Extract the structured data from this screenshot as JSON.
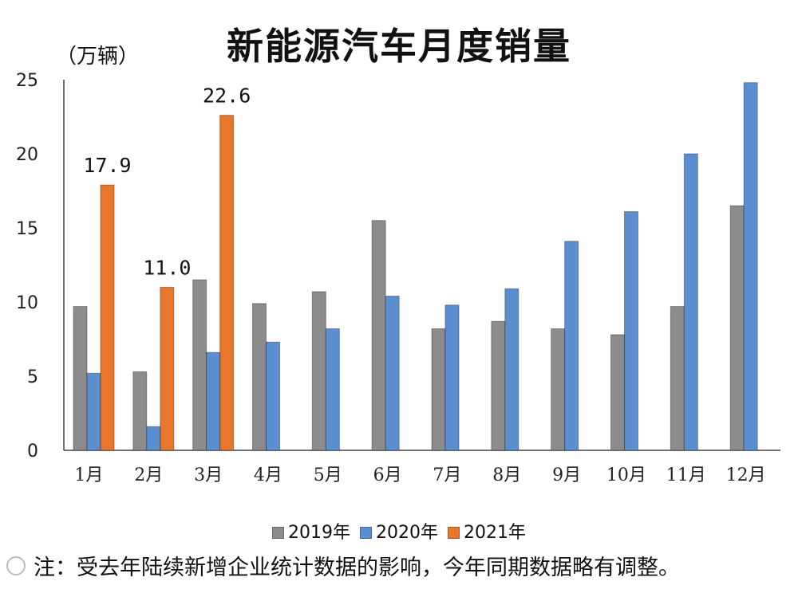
{
  "chart_data": {
    "type": "bar",
    "title": "新能源汽车月度销量",
    "ylabel": "（万辆）",
    "xlabel": "",
    "categories": [
      "1月",
      "2月",
      "3月",
      "4月",
      "5月",
      "6月",
      "7月",
      "8月",
      "9月",
      "10月",
      "11月",
      "12月"
    ],
    "series": [
      {
        "name": "2019年",
        "color": "#8c8c8c",
        "values": [
          9.7,
          5.3,
          11.5,
          9.9,
          10.7,
          15.5,
          8.2,
          8.7,
          8.2,
          7.8,
          9.7,
          16.5
        ]
      },
      {
        "name": "2020年",
        "color": "#5b8fcf",
        "values": [
          5.2,
          1.6,
          6.6,
          7.3,
          8.2,
          10.4,
          9.8,
          10.9,
          14.1,
          16.1,
          20.0,
          24.8
        ]
      },
      {
        "name": "2021年",
        "color": "#e8762b",
        "values": [
          17.9,
          11.0,
          22.6,
          null,
          null,
          null,
          null,
          null,
          null,
          null,
          null,
          null
        ]
      }
    ],
    "data_labels": [
      {
        "category": "1月",
        "series": "2021年",
        "text": "17.9"
      },
      {
        "category": "2月",
        "series": "2021年",
        "text": "11.0"
      },
      {
        "category": "3月",
        "series": "2021年",
        "text": "22.6"
      }
    ],
    "ylim": [
      0,
      25
    ],
    "yticks": [
      "0",
      "5",
      "10",
      "15",
      "20",
      "25"
    ],
    "grid": false,
    "legend_position": "bottom"
  },
  "note": "注：受去年陆续新增企业统计数据的影响，今年同期数据略有调整。"
}
